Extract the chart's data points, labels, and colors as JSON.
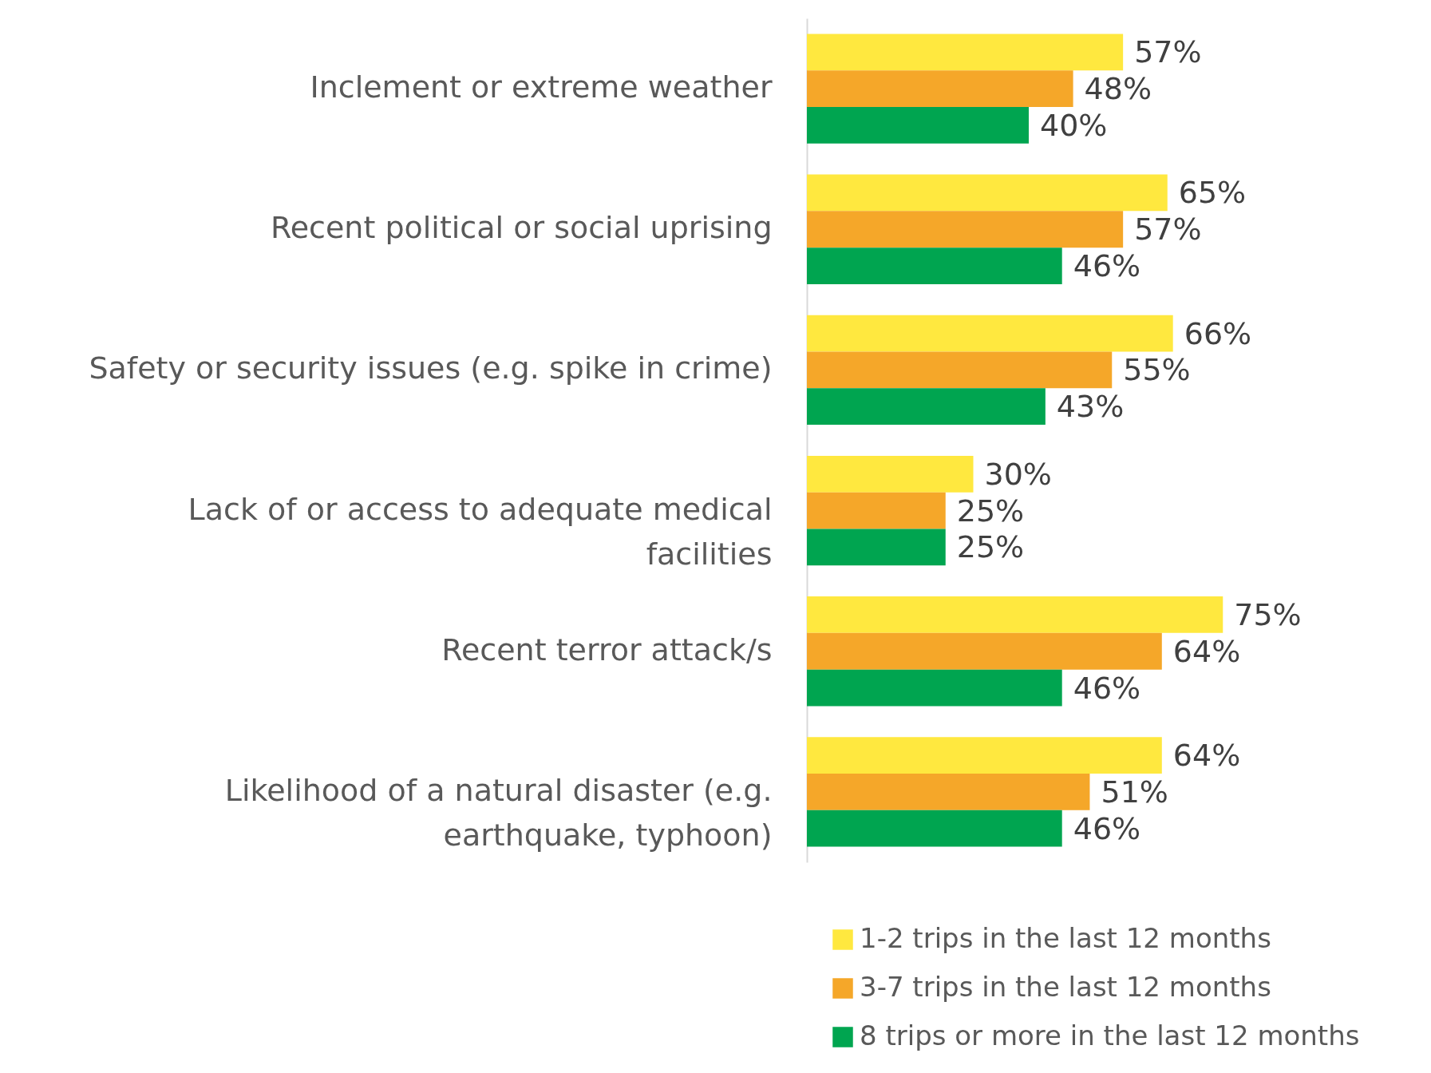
{
  "chart_data": {
    "type": "bar",
    "orientation": "horizontal",
    "legend": "bottom right",
    "categories": [
      "Inclement or extreme weather",
      "Recent political or social uprising",
      "Safety or security issues (e.g. spike in crime)",
      "Lack of or access to adequate medical facilities",
      "Recent terror attack/s",
      "Likelihood of a natural disaster (e.g. earthquake, typhoon)"
    ],
    "series": [
      {
        "name": "1-2 trips in the last 12 months",
        "color": "#ffe83f",
        "values": [
          57,
          65,
          66,
          30,
          75,
          64
        ],
        "value_labels": [
          "57%",
          "65%",
          "66%",
          "30%",
          "75%",
          "64%"
        ]
      },
      {
        "name": "3-7 trips in the last 12 months",
        "color": "#f5a729",
        "values": [
          48,
          57,
          55,
          25,
          64,
          51
        ],
        "value_labels": [
          "48%",
          "57%",
          "55%",
          "25%",
          "64%",
          "51%"
        ]
      },
      {
        "name": "8 trips or more in the last 12 months",
        "color": "#00a550",
        "values": [
          40,
          46,
          43,
          25,
          46,
          46
        ],
        "value_labels": [
          "40%",
          "46%",
          "43%",
          "25%",
          "46%",
          "46%"
        ]
      }
    ]
  }
}
